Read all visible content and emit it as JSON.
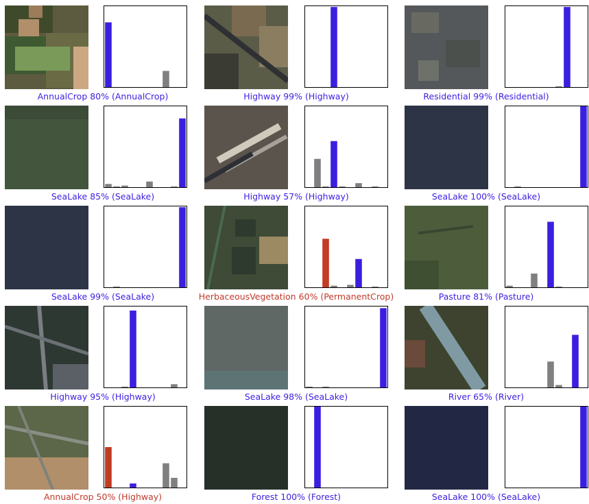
{
  "colors": {
    "predicted_correct": "#3b1fe0",
    "predicted_wrong": "#c23b22",
    "other": "#808080",
    "caption_correct": "#3b1fe0",
    "caption_wrong": "#c0392b"
  },
  "chart_data": [
    {
      "type": "bar",
      "caption": "AnnualCrop 80% (AnnualCrop)",
      "correct": true,
      "predicted_index": 0,
      "true_index": 0,
      "values": [
        0.8,
        0,
        0,
        0,
        0,
        0,
        0,
        0.2,
        0,
        0
      ],
      "ylim": [
        0,
        1
      ]
    },
    {
      "type": "bar",
      "caption": "Highway 99% (Highway)",
      "correct": true,
      "predicted_index": 3,
      "true_index": 3,
      "values": [
        0,
        0,
        0,
        0.99,
        0,
        0,
        0,
        0,
        0,
        0
      ],
      "ylim": [
        0,
        1
      ]
    },
    {
      "type": "bar",
      "caption": "Residential 99% (Residential)",
      "correct": true,
      "predicted_index": 7,
      "true_index": 7,
      "values": [
        0,
        0,
        0,
        0,
        0,
        0,
        0.01,
        0.99,
        0,
        0
      ],
      "ylim": [
        0,
        1
      ]
    },
    {
      "type": "bar",
      "caption": "SeaLake 85% (SeaLake)",
      "correct": true,
      "predicted_index": 9,
      "true_index": 9,
      "values": [
        0.04,
        0.01,
        0.02,
        0,
        0,
        0.07,
        0,
        0,
        0.01,
        0.85
      ],
      "ylim": [
        0,
        1
      ]
    },
    {
      "type": "bar",
      "caption": "Highway 57% (Highway)",
      "correct": true,
      "predicted_index": 3,
      "true_index": 3,
      "values": [
        0,
        0.35,
        0.01,
        0.57,
        0.01,
        0,
        0.05,
        0,
        0.01,
        0
      ],
      "ylim": [
        0,
        1
      ]
    },
    {
      "type": "bar",
      "caption": "SeaLake 100% (SeaLake)",
      "correct": true,
      "predicted_index": 9,
      "true_index": 9,
      "values": [
        0,
        0.01,
        0,
        0,
        0,
        0,
        0,
        0,
        0,
        1.0
      ],
      "ylim": [
        0,
        1
      ]
    },
    {
      "type": "bar",
      "caption": "SeaLake 99% (SeaLake)",
      "correct": true,
      "predicted_index": 9,
      "true_index": 9,
      "values": [
        0,
        0.01,
        0,
        0,
        0,
        0,
        0,
        0,
        0,
        0.99
      ],
      "ylim": [
        0,
        1
      ]
    },
    {
      "type": "bar",
      "caption": "HerbaceousVegetation 60% (PermanentCrop)",
      "correct": false,
      "predicted_index": 2,
      "true_index": 6,
      "values": [
        0,
        0,
        0.6,
        0.02,
        0,
        0.03,
        0.35,
        0,
        0.01,
        0
      ],
      "ylim": [
        0,
        1
      ]
    },
    {
      "type": "bar",
      "caption": "Pasture 81% (Pasture)",
      "correct": true,
      "predicted_index": 5,
      "true_index": 5,
      "values": [
        0.02,
        0,
        0,
        0.17,
        0,
        0.81,
        0.01,
        0,
        0,
        0
      ],
      "ylim": [
        0,
        1
      ]
    },
    {
      "type": "bar",
      "caption": "Highway 95% (Highway)",
      "correct": true,
      "predicted_index": 3,
      "true_index": 3,
      "values": [
        0,
        0,
        0.01,
        0.95,
        0,
        0,
        0,
        0,
        0.04,
        0
      ],
      "ylim": [
        0,
        1
      ]
    },
    {
      "type": "bar",
      "caption": "SeaLake 98% (SeaLake)",
      "correct": true,
      "predicted_index": 9,
      "true_index": 9,
      "values": [
        0.01,
        0,
        0.01,
        0,
        0,
        0,
        0,
        0,
        0,
        0.98
      ],
      "ylim": [
        0,
        1
      ]
    },
    {
      "type": "bar",
      "caption": "River 65% (River)",
      "correct": true,
      "predicted_index": 8,
      "true_index": 8,
      "values": [
        0,
        0,
        0,
        0,
        0,
        0.32,
        0.03,
        0,
        0.65,
        0
      ],
      "ylim": [
        0,
        1
      ]
    },
    {
      "type": "bar",
      "caption": "AnnualCrop 50% (Highway)",
      "correct": false,
      "predicted_index": 0,
      "true_index": 3,
      "values": [
        0.5,
        0,
        0,
        0.05,
        0,
        0,
        0,
        0.3,
        0.12,
        0
      ],
      "ylim": [
        0,
        1
      ]
    },
    {
      "type": "bar",
      "caption": "Forest 100% (Forest)",
      "correct": true,
      "predicted_index": 1,
      "true_index": 1,
      "values": [
        0,
        1.0,
        0,
        0,
        0,
        0,
        0,
        0,
        0,
        0
      ],
      "ylim": [
        0,
        1
      ]
    },
    {
      "type": "bar",
      "caption": "SeaLake 100% (SeaLake)",
      "correct": true,
      "predicted_index": 9,
      "true_index": 9,
      "values": [
        0,
        0,
        0,
        0,
        0,
        0,
        0,
        0,
        0,
        1.0
      ],
      "ylim": [
        0,
        1
      ]
    }
  ]
}
